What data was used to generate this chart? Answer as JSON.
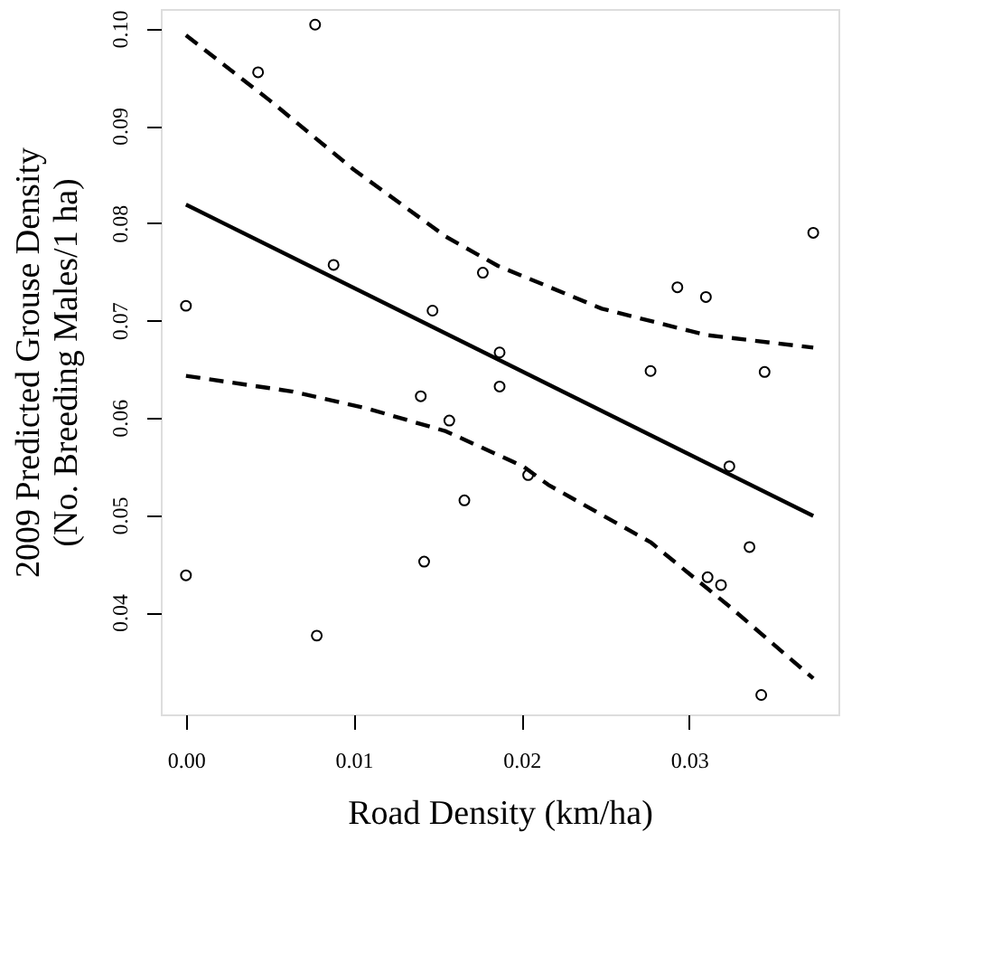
{
  "chart_data": {
    "type": "scatter",
    "xlabel": "Road Density (km/ha)",
    "ylabel": "2009 Predicted Grouse Density\n(No. Breeding Males/1 ha)",
    "xlim": [
      -0.0015,
      0.0389
    ],
    "ylim": [
      0.0295,
      0.102
    ],
    "xticks": [
      {
        "value": 0,
        "label": "0.00"
      },
      0.01,
      0.02,
      0.03
    ],
    "yticks": [
      0.04,
      0.05,
      0.06,
      0.07,
      0.08,
      0.09,
      {
        "value": 0.1,
        "label": "0.10"
      }
    ],
    "grid": false,
    "series": [
      {
        "marker": "circle",
        "color": "#000000",
        "x": [
          0,
          0.0043,
          0.0077,
          0.0088,
          0.0177,
          0.0147,
          0.0187,
          0.0187,
          0.014,
          0.0293,
          0.031,
          0.0374,
          0.0277,
          0.0345,
          0.0157,
          0.0166,
          0,
          0.0078,
          0.0142,
          0.0204,
          0.0324,
          0.0336,
          0.0311,
          0.0319,
          0.0343
        ],
        "values": [
          0.0715,
          0.0955,
          0.1004,
          0.0757,
          0.0749,
          0.071,
          0.0667,
          0.0632,
          0.0622,
          0.0734,
          0.0724,
          0.079,
          0.0648,
          0.0647,
          0.0597,
          0.0515,
          0.0438,
          0.0376,
          0.0452,
          0.0541,
          0.055,
          0.0467,
          0.0436,
          0.0428,
          0.0315
        ]
      },
      {
        "type": "line",
        "line_style": "solid",
        "color": "#000000",
        "x": [
          0,
          0.0374
        ],
        "values": [
          0.0819,
          0.0499
        ]
      },
      {
        "type": "line",
        "line_style": "dashed",
        "color": "#000000",
        "x": [
          0,
          0.005,
          0.01,
          0.0155,
          0.0186,
          0.0248,
          0.031,
          0.0374
        ],
        "values": [
          0.0993,
          0.0926,
          0.0855,
          0.0786,
          0.0756,
          0.0712,
          0.0685,
          0.0672
        ]
      },
      {
        "type": "line",
        "line_style": "dashed",
        "color": "#000000",
        "x": [
          0,
          0.0063,
          0.0109,
          0.0155,
          0.0201,
          0.0216,
          0.0277,
          0.0324,
          0.0374
        ],
        "values": [
          0.0643,
          0.0627,
          0.0609,
          0.0586,
          0.055,
          0.0531,
          0.0472,
          0.0406,
          0.0332
        ]
      }
    ]
  }
}
